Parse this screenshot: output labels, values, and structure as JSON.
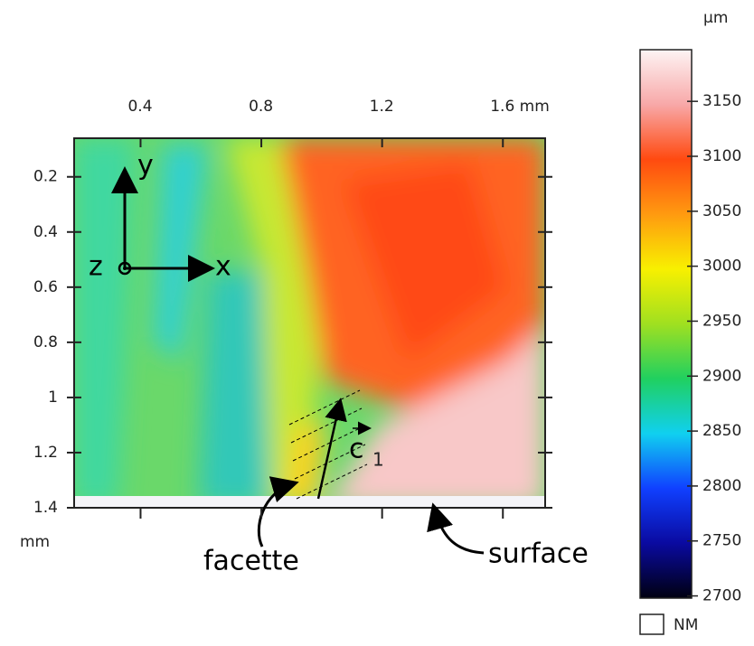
{
  "chart_data": {
    "type": "heatmap",
    "xticks": [
      0.4,
      0.8,
      1.2,
      {
        "value": 1.6,
        "label": "1.6 mm"
      }
    ],
    "xlim": [
      0.18,
      1.74
    ],
    "yticks": [
      0.2,
      0.4,
      0.6,
      0.8,
      1,
      1.2,
      1.4
    ],
    "ylim": [
      0.06,
      1.4
    ],
    "y_label": "mm",
    "colorbar": {
      "unit": "µm",
      "lim": [
        2698,
        3197
      ],
      "ticks": [
        2700,
        2750,
        2800,
        2850,
        2900,
        2950,
        3000,
        3050,
        3100,
        3150
      ],
      "missing_label": "NM"
    },
    "annotations": {
      "axis_y": "y",
      "axis_z": "z",
      "axis_x": "x",
      "vector": "c",
      "vector_sub": "1",
      "facette": "facette",
      "surface": "surface"
    }
  }
}
